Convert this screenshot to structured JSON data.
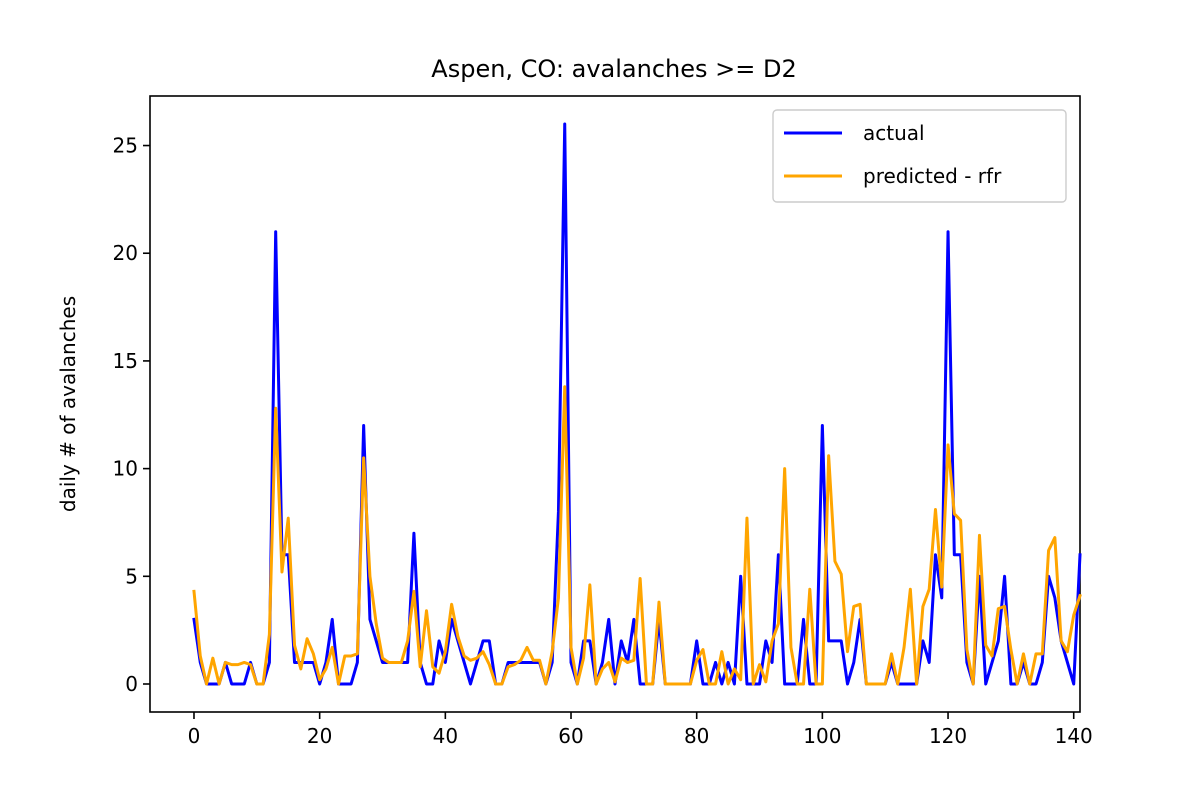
{
  "chart_data": {
    "type": "line",
    "title": "Aspen, CO: avalanches >= D2",
    "xlabel": "",
    "ylabel": "daily # of avalanches",
    "xlim": [
      -7,
      141
    ],
    "ylim": [
      -1.3,
      27.3
    ],
    "xticks": [
      "0",
      "20",
      "40",
      "60",
      "80",
      "100",
      "120",
      "140"
    ],
    "yticks": [
      "0",
      "5",
      "10",
      "15",
      "20",
      "25"
    ],
    "grid": false,
    "legend_position": "top-right",
    "series": [
      {
        "name": "actual",
        "color": "#0000ff",
        "values": [
          3,
          1,
          0,
          0,
          0,
          1,
          0,
          0,
          0,
          1,
          0,
          0,
          1,
          21,
          6,
          6,
          1,
          1,
          1,
          1,
          0,
          1,
          3,
          0,
          0,
          0,
          1,
          12,
          3,
          2,
          1,
          1,
          1,
          1,
          1,
          7,
          1,
          0,
          0,
          2,
          1,
          3,
          2,
          1,
          0,
          1,
          2,
          2,
          0,
          0,
          1,
          1,
          1,
          1,
          1,
          1,
          0,
          1,
          8,
          26,
          1,
          0,
          2,
          2,
          0,
          1,
          3,
          0,
          2,
          1,
          3,
          0,
          0,
          0,
          3,
          0,
          0,
          0,
          0,
          0,
          2,
          0,
          0,
          1,
          0,
          1,
          0,
          5,
          0,
          0,
          0,
          2,
          1,
          6,
          0,
          0,
          0,
          3,
          0,
          0,
          12,
          2,
          2,
          2,
          0,
          1,
          3,
          0,
          0,
          0,
          0,
          1,
          0,
          0,
          0,
          0,
          2,
          1,
          6,
          4,
          21,
          6,
          6,
          1,
          0,
          5,
          0,
          1,
          2,
          5,
          0,
          0,
          1,
          0,
          0,
          1,
          5,
          4,
          2,
          1,
          0,
          6
        ]
      },
      {
        "name": "predicted - rfr",
        "color": "#ffa500",
        "values": [
          4.3,
          1.3,
          0,
          1.2,
          0,
          1,
          0.9,
          0.9,
          1,
          0.9,
          0,
          0,
          2.3,
          12.8,
          5.2,
          7.7,
          1.8,
          0.7,
          2.1,
          1.4,
          0.2,
          0.7,
          1.7,
          0,
          1.3,
          1.3,
          1.4,
          10.5,
          5,
          2.8,
          1.2,
          1,
          1,
          1,
          2,
          4.3,
          0.8,
          3.4,
          0.8,
          0.5,
          1.5,
          3.7,
          2.2,
          1.3,
          1.1,
          1.2,
          1.5,
          0.9,
          0,
          0,
          0.8,
          0.9,
          1.1,
          1.7,
          1.1,
          1.1,
          0,
          1.5,
          4,
          13.8,
          1.7,
          0,
          1.2,
          4.6,
          0,
          0.7,
          1,
          0.1,
          1.2,
          1,
          1.1,
          4.9,
          0,
          0,
          3.8,
          0,
          0,
          0,
          0,
          0,
          1.1,
          1.6,
          0,
          0,
          1.5,
          0,
          0.7,
          0.2,
          7.7,
          0,
          0.9,
          0.1,
          2,
          2.8,
          10,
          1.7,
          0,
          0,
          4.4,
          0,
          0,
          10.6,
          5.7,
          5.1,
          1.5,
          3.6,
          3.7,
          0,
          0,
          0,
          0,
          1.4,
          0,
          1.7,
          4.4,
          0,
          3.6,
          4.4,
          8.1,
          4.5,
          11.1,
          7.9,
          7.6,
          1.6,
          0,
          6.9,
          1.8,
          1.3,
          3.5,
          3.6,
          1.6,
          0,
          1.4,
          0,
          1.4,
          1.4,
          6.2,
          6.8,
          2,
          1.5,
          3.2,
          4.1
        ]
      }
    ]
  }
}
